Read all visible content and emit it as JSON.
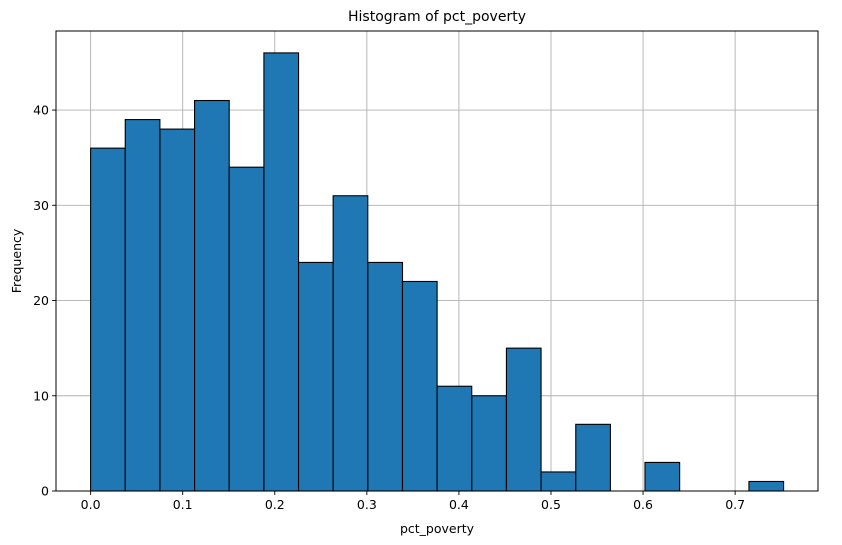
{
  "chart_data": {
    "type": "bar",
    "title": "Histogram of pct_poverty",
    "xlabel": "pct_poverty",
    "ylabel": "Frequency",
    "xlim": [
      -0.0376,
      0.79
    ],
    "ylim": [
      0,
      48.3
    ],
    "grid": true,
    "bin_width": 0.03763,
    "bins": [
      {
        "start": 0.0,
        "count": 36
      },
      {
        "start": 0.0376,
        "count": 39
      },
      {
        "start": 0.0753,
        "count": 38
      },
      {
        "start": 0.1129,
        "count": 41
      },
      {
        "start": 0.1505,
        "count": 34
      },
      {
        "start": 0.1882,
        "count": 46
      },
      {
        "start": 0.2258,
        "count": 24
      },
      {
        "start": 0.2634,
        "count": 31
      },
      {
        "start": 0.3011,
        "count": 24
      },
      {
        "start": 0.3387,
        "count": 22
      },
      {
        "start": 0.3763,
        "count": 11
      },
      {
        "start": 0.414,
        "count": 10
      },
      {
        "start": 0.4516,
        "count": 15
      },
      {
        "start": 0.4892,
        "count": 2
      },
      {
        "start": 0.5269,
        "count": 7
      },
      {
        "start": 0.5645,
        "count": 0
      },
      {
        "start": 0.6021,
        "count": 3
      },
      {
        "start": 0.6398,
        "count": 0
      },
      {
        "start": 0.6774,
        "count": 0
      },
      {
        "start": 0.715,
        "count": 1
      }
    ],
    "xticks": [
      {
        "value": 0.0,
        "label": "0.0"
      },
      {
        "value": 0.1,
        "label": "0.1"
      },
      {
        "value": 0.2,
        "label": "0.2"
      },
      {
        "value": 0.3,
        "label": "0.3"
      },
      {
        "value": 0.4,
        "label": "0.4"
      },
      {
        "value": 0.5,
        "label": "0.5"
      },
      {
        "value": 0.6,
        "label": "0.6"
      },
      {
        "value": 0.7,
        "label": "0.7"
      }
    ],
    "yticks": [
      {
        "value": 0,
        "label": "0"
      },
      {
        "value": 10,
        "label": "10"
      },
      {
        "value": 20,
        "label": "20"
      },
      {
        "value": 30,
        "label": "30"
      },
      {
        "value": 40,
        "label": "40"
      }
    ],
    "colors": {
      "bar_fill": "#1f77b4",
      "bar_edge": "#000000",
      "grid": "#b0b0b0"
    }
  }
}
